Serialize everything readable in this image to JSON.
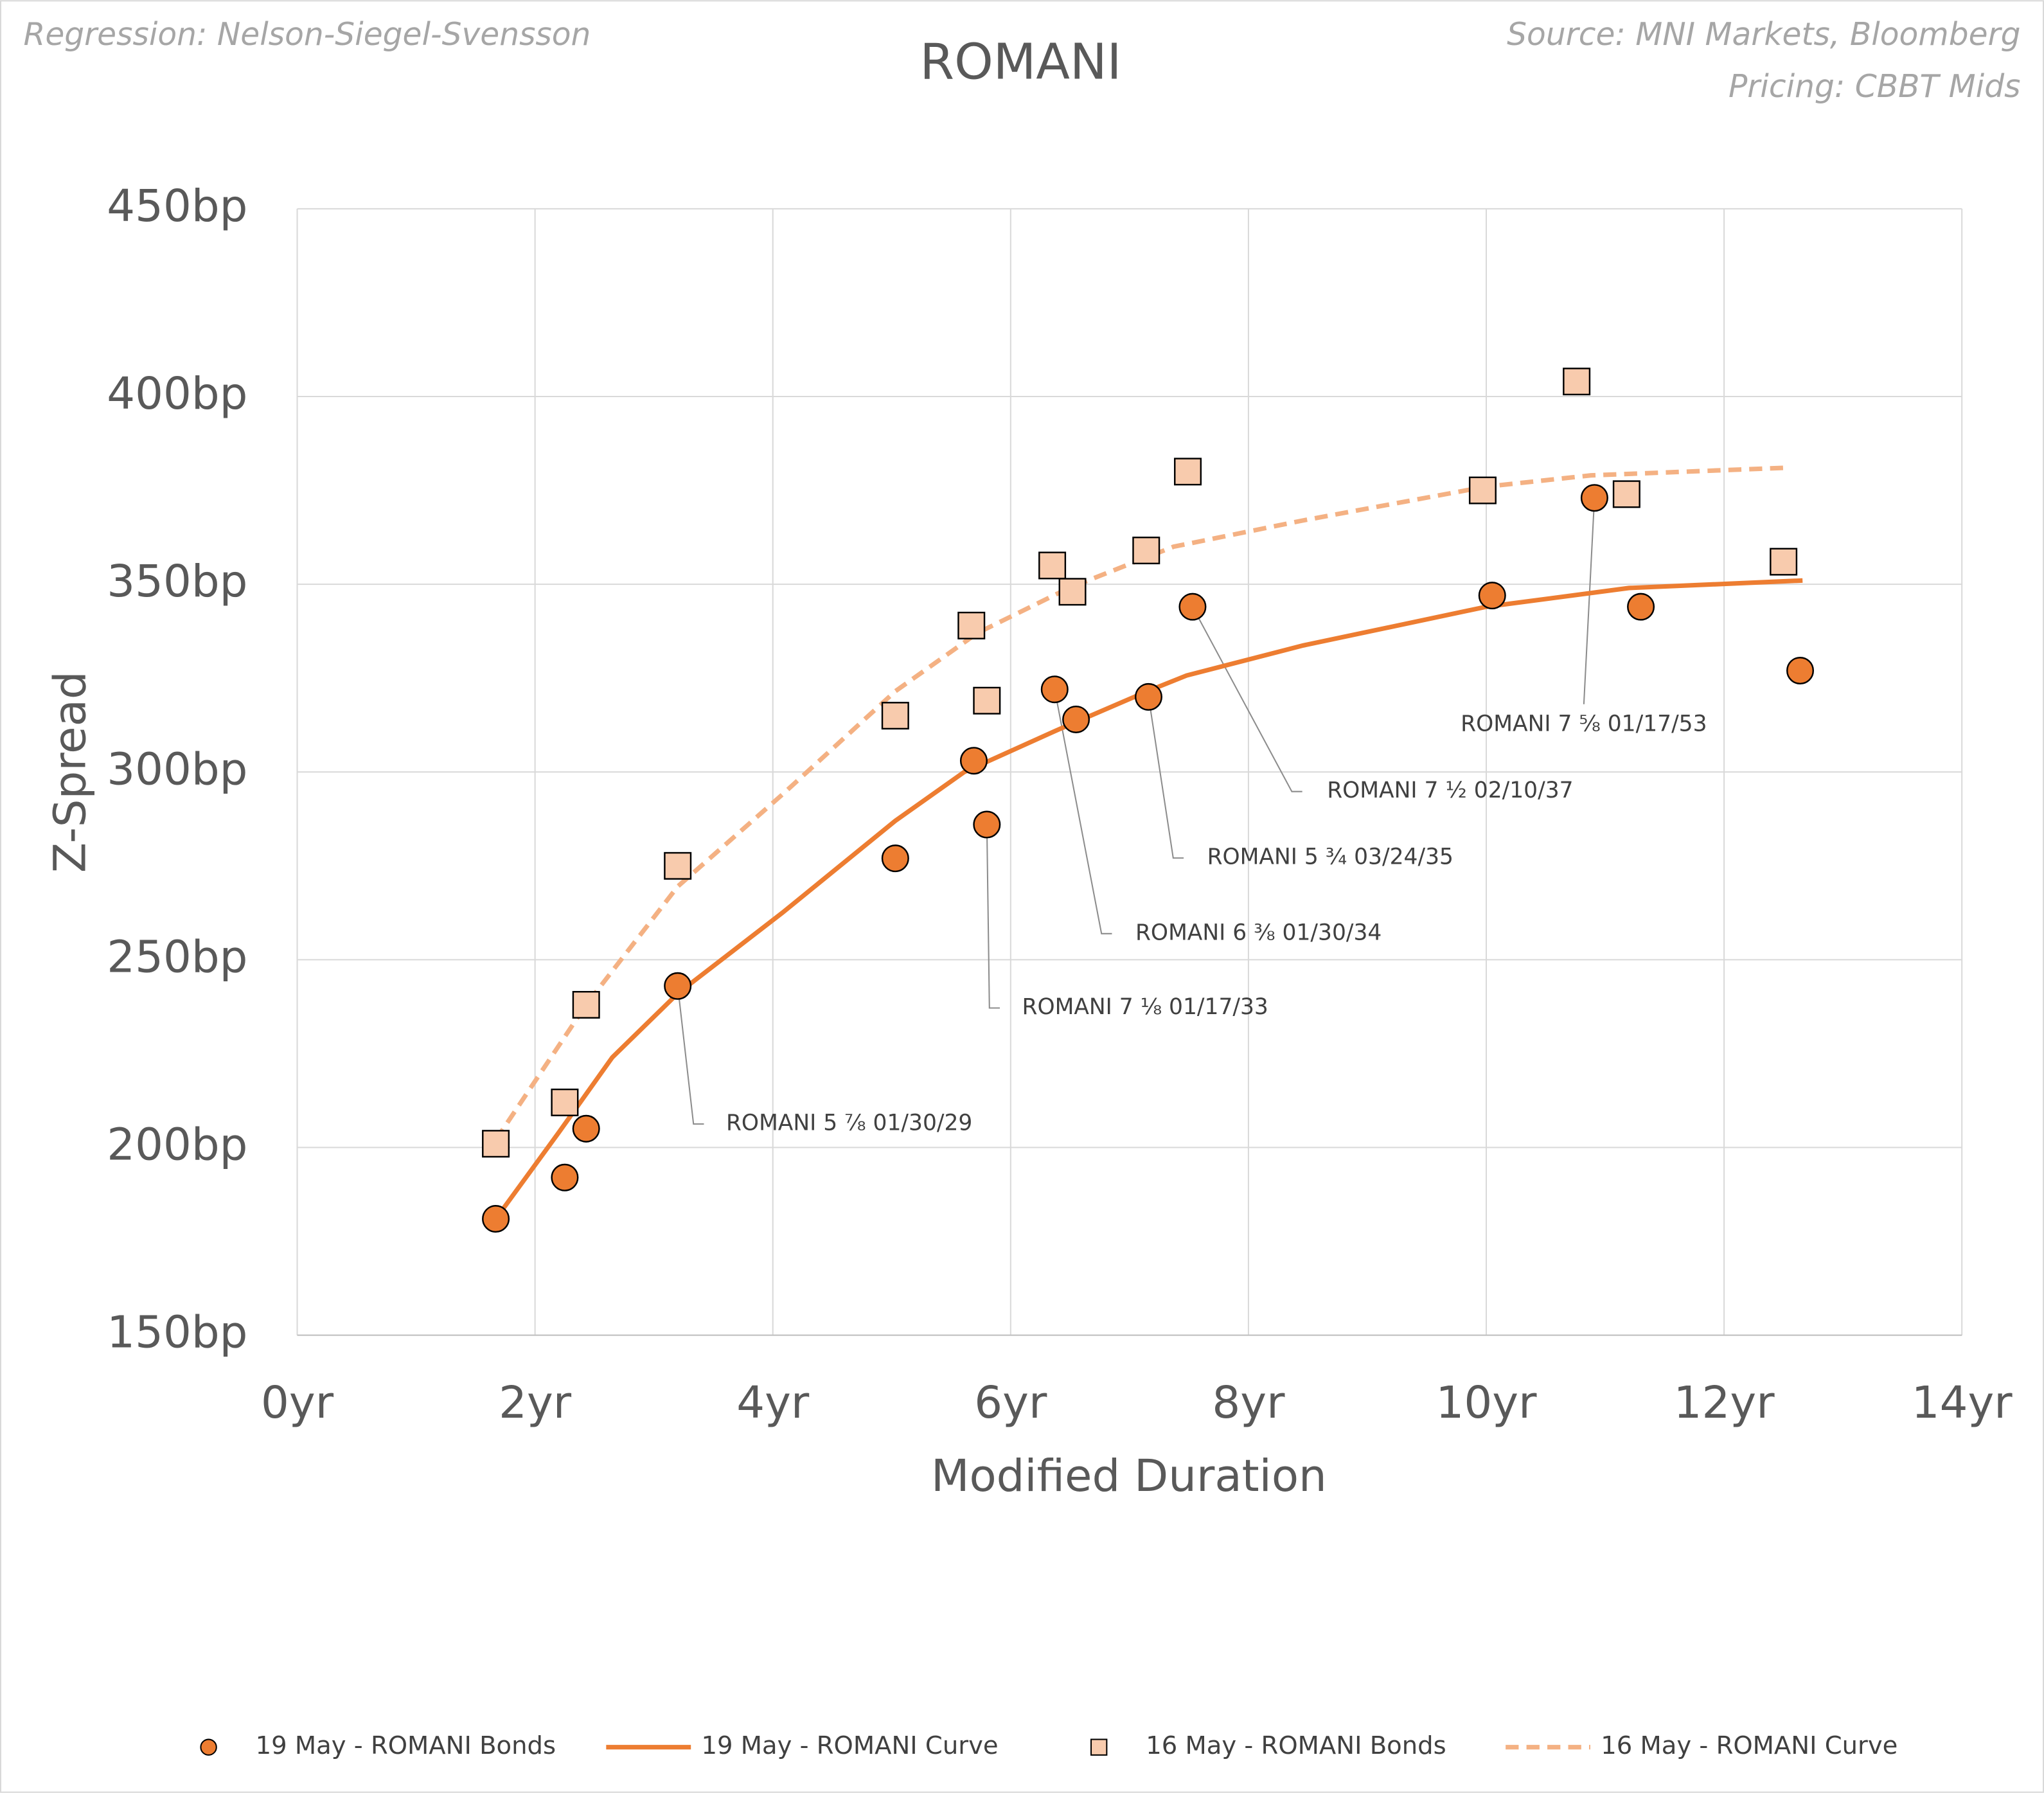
{
  "chart_data": {
    "type": "scatter",
    "title": "ROMANI",
    "subtitle": "Regression: Nelson-Siegel-Svensson",
    "source": "Source: MNI Markets, Bloomberg",
    "pricing": "Pricing: CBBT Mids",
    "x_label": "Modified Duration",
    "y_label": "Z-Spread",
    "xlim": [
      0,
      14
    ],
    "ylim": [
      150,
      450
    ],
    "xticks": [
      {
        "value": 0,
        "label": "0yr"
      },
      {
        "value": 2,
        "label": "2yr"
      },
      {
        "value": 4,
        "label": "4yr"
      },
      {
        "value": 6,
        "label": "6yr"
      },
      {
        "value": 8,
        "label": "8yr"
      },
      {
        "value": 10,
        "label": "10yr"
      },
      {
        "value": 12,
        "label": "12yr"
      },
      {
        "value": 14,
        "label": "14yr"
      }
    ],
    "yticks": [
      {
        "value": 150,
        "label": "150bp"
      },
      {
        "value": 200,
        "label": "200bp"
      },
      {
        "value": 250,
        "label": "250bp"
      },
      {
        "value": 300,
        "label": "300bp"
      },
      {
        "value": 350,
        "label": "350bp"
      },
      {
        "value": 400,
        "label": "400bp"
      },
      {
        "value": 450,
        "label": "450bp"
      }
    ],
    "grid": true,
    "legend": "bottom",
    "series": [
      {
        "name": "19 May - ROMANI Bonds",
        "mark": "circle",
        "color": "#ed7d31",
        "x": [
          1.67,
          2.25,
          2.43,
          3.2,
          5.03,
          5.69,
          5.8,
          6.37,
          6.55,
          7.16,
          7.53,
          10.05,
          10.91,
          11.3,
          12.64
        ],
        "values": [
          181,
          192,
          205,
          243,
          277,
          303,
          286,
          322,
          314,
          320,
          344,
          347,
          373,
          344,
          327
        ]
      },
      {
        "name": "19 May - ROMANI Curve",
        "mark": "line",
        "color": "#ed7d31",
        "dash": false,
        "x": [
          1.67,
          2.2,
          2.65,
          3.2,
          4.08,
          5.03,
          5.61,
          6.38,
          7.15,
          7.48,
          8.46,
          10,
          11.2,
          12.66
        ],
        "values": [
          181,
          204,
          224,
          241,
          262.5,
          287,
          300,
          311,
          321.5,
          325.7,
          333.7,
          344,
          349,
          351
        ]
      },
      {
        "name": "16 May - ROMANI Bonds",
        "mark": "square",
        "color": "#f8cbad",
        "x": [
          1.67,
          2.25,
          2.43,
          3.2,
          5.03,
          5.67,
          5.8,
          6.35,
          6.52,
          7.14,
          7.49,
          9.97,
          10.76,
          11.18,
          12.5
        ],
        "values": [
          201,
          212,
          238,
          275,
          315,
          339,
          319,
          355,
          348,
          359,
          380,
          375,
          404,
          374,
          356
        ]
      },
      {
        "name": "16 May - ROMANI Curve",
        "mark": "line",
        "color": "#f4b183",
        "dash": true,
        "x": [
          1.67,
          2.43,
          3.2,
          4.08,
          5.03,
          5.72,
          6.49,
          7.37,
          8.46,
          10,
          10.88,
          12.5
        ],
        "values": [
          202,
          238,
          269.5,
          294,
          321.5,
          337,
          349,
          360,
          367,
          376,
          379,
          381
        ]
      }
    ],
    "annotations": [
      "ROMANI 5 ⅞ 01/30/29",
      "ROMANI 7 ⅛ 01/17/33",
      "ROMANI 6 ⅜ 01/30/34",
      "ROMANI 5 ¾ 03/24/35",
      "ROMANI 7 ½ 02/10/37",
      "ROMANI 7 ⅝ 01/17/53"
    ]
  }
}
